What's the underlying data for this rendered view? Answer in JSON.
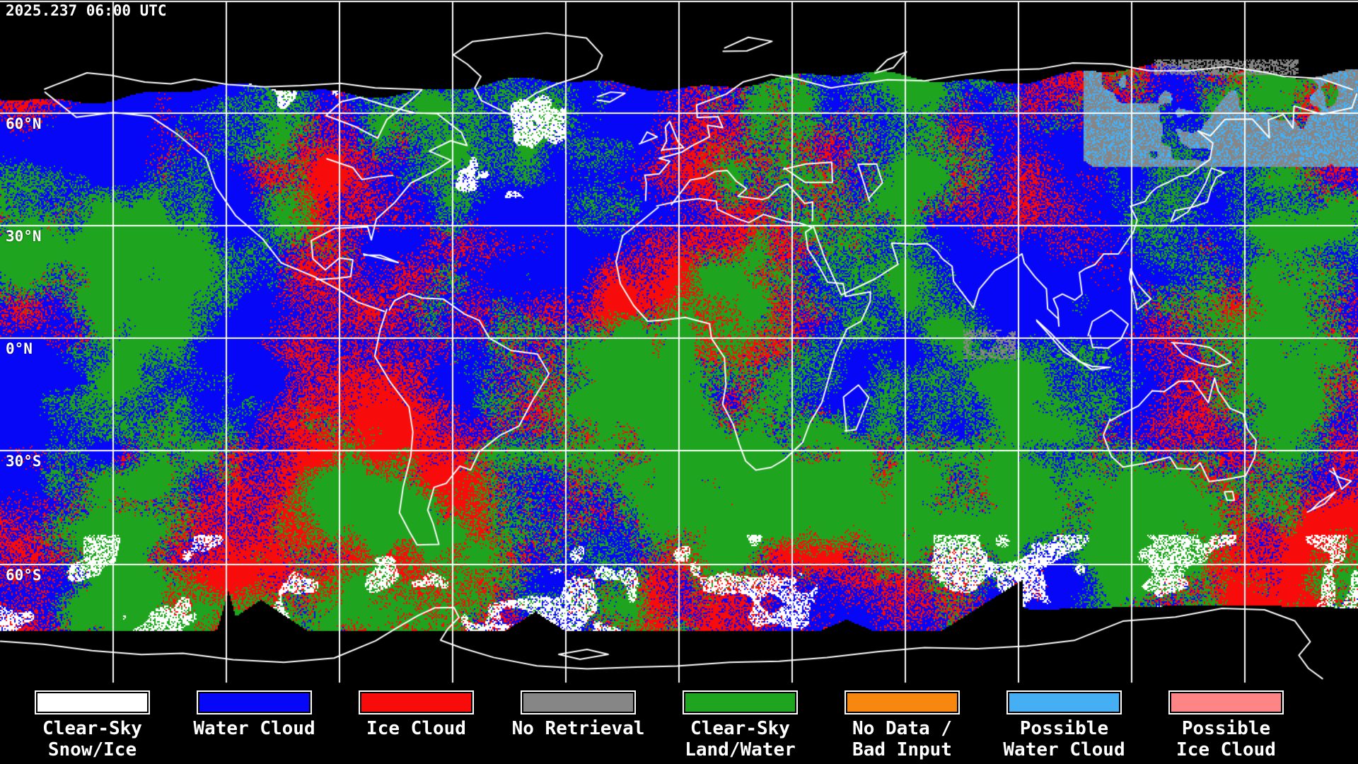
{
  "header": {
    "timestamp": "2025.237 06:00 UTC"
  },
  "map": {
    "projection": "equirectangular",
    "background_color": "#000000",
    "grid_color": "#FFFFFF",
    "coastline_color": "#FFFFFF",
    "latitude_labels": [
      {
        "text": "60°N"
      },
      {
        "text": "30°N"
      },
      {
        "text": "0°N"
      },
      {
        "text": "30°S"
      },
      {
        "text": "60°S"
      }
    ]
  },
  "palette": {
    "clear_sky_snow_ice": "#FFFFFF",
    "water_cloud": "#0707F8",
    "ice_cloud": "#F80B0B",
    "no_retrieval": "#868686",
    "clear_sky_land_water": "#1EA41E",
    "no_data_bad_input": "#F7870F",
    "possible_water_cloud": "#46AEF2",
    "possible_ice_cloud": "#FE8585"
  },
  "legend": {
    "items": [
      {
        "key": "clear_sky_snow_ice",
        "label_lines": [
          "Clear-Sky",
          "Snow/Ice"
        ]
      },
      {
        "key": "water_cloud",
        "label_lines": [
          "Water Cloud"
        ]
      },
      {
        "key": "ice_cloud",
        "label_lines": [
          "Ice Cloud"
        ]
      },
      {
        "key": "no_retrieval",
        "label_lines": [
          "No Retrieval"
        ]
      },
      {
        "key": "clear_sky_land_water",
        "label_lines": [
          "Clear-Sky",
          "Land/Water"
        ]
      },
      {
        "key": "no_data_bad_input",
        "label_lines": [
          "No Data /",
          "Bad Input"
        ]
      },
      {
        "key": "possible_water_cloud",
        "label_lines": [
          "Possible",
          "Water Cloud"
        ]
      },
      {
        "key": "possible_ice_cloud",
        "label_lines": [
          "Possible",
          "Ice Cloud"
        ]
      }
    ]
  }
}
